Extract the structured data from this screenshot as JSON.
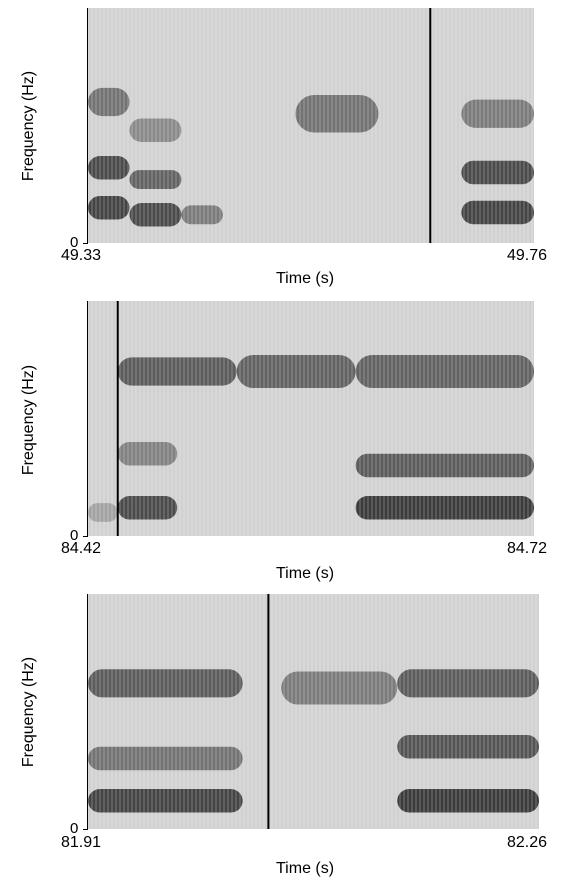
{
  "chart_data": [
    {
      "type": "heatmap",
      "ylabel": "Frequency (Hz)",
      "xlabel": "Time (s)",
      "y_zero_label": "0",
      "x_start": "49.33",
      "x_end": "49.76",
      "xlim": [
        49.33,
        49.76
      ],
      "marker_time": 49.66,
      "colormap": "grayscale (dark = high energy)",
      "formants": [
        {
          "t0": 49.33,
          "t1": 49.37,
          "f": 0.15,
          "bw": 0.05,
          "a": 0.9
        },
        {
          "t0": 49.33,
          "t1": 49.37,
          "f": 0.32,
          "bw": 0.05,
          "a": 0.85
        },
        {
          "t0": 49.33,
          "t1": 49.37,
          "f": 0.6,
          "bw": 0.06,
          "a": 0.6
        },
        {
          "t0": 49.37,
          "t1": 49.42,
          "f": 0.12,
          "bw": 0.05,
          "a": 0.85
        },
        {
          "t0": 49.37,
          "t1": 49.42,
          "f": 0.27,
          "bw": 0.04,
          "a": 0.7
        },
        {
          "t0": 49.37,
          "t1": 49.42,
          "f": 0.48,
          "bw": 0.05,
          "a": 0.45
        },
        {
          "t0": 49.42,
          "t1": 49.46,
          "f": 0.12,
          "bw": 0.04,
          "a": 0.55
        },
        {
          "t0": 49.53,
          "t1": 49.61,
          "f": 0.55,
          "bw": 0.08,
          "a": 0.6
        },
        {
          "t0": 49.69,
          "t1": 49.76,
          "f": 0.13,
          "bw": 0.05,
          "a": 0.9
        },
        {
          "t0": 49.69,
          "t1": 49.76,
          "f": 0.3,
          "bw": 0.05,
          "a": 0.85
        },
        {
          "t0": 49.69,
          "t1": 49.76,
          "f": 0.55,
          "bw": 0.06,
          "a": 0.55
        }
      ]
    },
    {
      "type": "heatmap",
      "ylabel": "Frequency (Hz)",
      "xlabel": "Time (s)",
      "y_zero_label": "0",
      "x_start": "84.42",
      "x_end": "84.72",
      "xlim": [
        84.42,
        84.72
      ],
      "marker_time": 84.44,
      "colormap": "grayscale (dark = high energy)",
      "formants": [
        {
          "t0": 84.42,
          "t1": 84.44,
          "f": 0.1,
          "bw": 0.04,
          "a": 0.3
        },
        {
          "t0": 84.44,
          "t1": 84.48,
          "f": 0.12,
          "bw": 0.05,
          "a": 0.85
        },
        {
          "t0": 84.44,
          "t1": 84.48,
          "f": 0.35,
          "bw": 0.05,
          "a": 0.5
        },
        {
          "t0": 84.44,
          "t1": 84.52,
          "f": 0.7,
          "bw": 0.06,
          "a": 0.75
        },
        {
          "t0": 84.52,
          "t1": 84.6,
          "f": 0.7,
          "bw": 0.07,
          "a": 0.7
        },
        {
          "t0": 84.6,
          "t1": 84.72,
          "f": 0.12,
          "bw": 0.05,
          "a": 0.95
        },
        {
          "t0": 84.6,
          "t1": 84.72,
          "f": 0.3,
          "bw": 0.05,
          "a": 0.75
        },
        {
          "t0": 84.6,
          "t1": 84.72,
          "f": 0.7,
          "bw": 0.07,
          "a": 0.7
        }
      ]
    },
    {
      "type": "heatmap",
      "ylabel": "Frequency (Hz)",
      "xlabel": "Time (s)",
      "y_zero_label": "0",
      "x_start": "81.91",
      "x_end": "82.26",
      "xlim": [
        81.91,
        82.26
      ],
      "marker_time": 82.05,
      "colormap": "grayscale (dark = high energy)",
      "formants": [
        {
          "t0": 81.91,
          "t1": 82.03,
          "f": 0.12,
          "bw": 0.05,
          "a": 0.9
        },
        {
          "t0": 81.91,
          "t1": 82.03,
          "f": 0.3,
          "bw": 0.05,
          "a": 0.6
        },
        {
          "t0": 81.91,
          "t1": 82.03,
          "f": 0.62,
          "bw": 0.06,
          "a": 0.75
        },
        {
          "t0": 82.06,
          "t1": 82.15,
          "f": 0.6,
          "bw": 0.07,
          "a": 0.55
        },
        {
          "t0": 82.15,
          "t1": 82.26,
          "f": 0.12,
          "bw": 0.05,
          "a": 0.95
        },
        {
          "t0": 82.15,
          "t1": 82.26,
          "f": 0.35,
          "bw": 0.05,
          "a": 0.8
        },
        {
          "t0": 82.15,
          "t1": 82.26,
          "f": 0.62,
          "bw": 0.06,
          "a": 0.75
        }
      ]
    }
  ]
}
